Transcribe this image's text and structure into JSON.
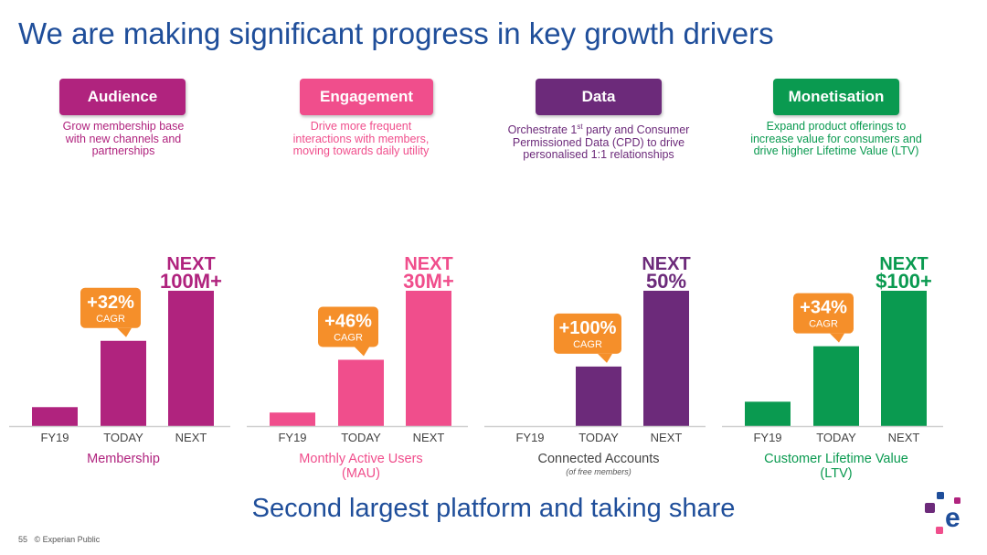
{
  "slide": {
    "title": "We are making significant progress in key growth drivers",
    "footer": "Second largest platform and taking share",
    "page_number": "55",
    "classification": "© Experian Public"
  },
  "colors": {
    "audience": "#b0237e",
    "engagement": "#f04e8c",
    "data": "#6c2a7a",
    "monetisation": "#0a9a50",
    "callout": "#f58f2a",
    "title_blue": "#1f4e9a"
  },
  "logo": {
    "icon": "experian-logo-icon",
    "letter": "e",
    "colors": [
      "#6c2a7a",
      "#1f4e9a",
      "#b0237e",
      "#f04e8c"
    ]
  },
  "chart_data": [
    {
      "type": "bar",
      "pill": "Audience",
      "description": "Grow membership base\nwith new channels and\npartnerships",
      "categories": [
        "FY19",
        "TODAY",
        "NEXT"
      ],
      "values": [
        14,
        63,
        100
      ],
      "ylim": [
        0,
        100
      ],
      "next_label": [
        "NEXT",
        "100M+"
      ],
      "callout": {
        "value": "+32%",
        "sub": "CAGR"
      },
      "xlabel": "Membership",
      "xlabel_note": "",
      "color": "#b0237e"
    },
    {
      "type": "bar",
      "pill": "Engagement",
      "description": "Drive more frequent\ninteractions with members,\nmoving towards daily utility",
      "categories": [
        "FY19",
        "TODAY",
        "NEXT"
      ],
      "values": [
        10,
        49,
        100
      ],
      "ylim": [
        0,
        100
      ],
      "next_label": [
        "NEXT",
        "30M+"
      ],
      "callout": {
        "value": "+46%",
        "sub": "CAGR"
      },
      "xlabel": "Monthly Active Users\n(MAU)",
      "xlabel_note": "",
      "color": "#f04e8c"
    },
    {
      "type": "bar",
      "pill": "Data",
      "description_html": "Orchestrate 1<sup>st</sup> party and Consumer\nPermissioned Data (CPD) to drive\npersonalised 1:1 relationships",
      "categories": [
        "FY19",
        "TODAY",
        "NEXT"
      ],
      "values": [
        0,
        44,
        100
      ],
      "ylim": [
        0,
        100
      ],
      "next_label": [
        "NEXT",
        "50%"
      ],
      "callout": {
        "value": "+100%",
        "sub": "CAGR"
      },
      "xlabel": "Connected Accounts",
      "xlabel_note": "(of free members)",
      "color": "#6c2a7a"
    },
    {
      "type": "bar",
      "pill": "Monetisation",
      "description": "Expand product offerings to\nincrease value for consumers and\ndrive higher Lifetime Value (LTV)",
      "categories": [
        "FY19",
        "TODAY",
        "NEXT"
      ],
      "values": [
        18,
        59,
        100
      ],
      "ylim": [
        0,
        100
      ],
      "next_label": [
        "NEXT",
        "$100+"
      ],
      "callout": {
        "value": "+34%",
        "sub": "CAGR"
      },
      "xlabel": "Customer Lifetime Value\n(LTV)",
      "xlabel_note": "",
      "color": "#0a9a50"
    }
  ]
}
